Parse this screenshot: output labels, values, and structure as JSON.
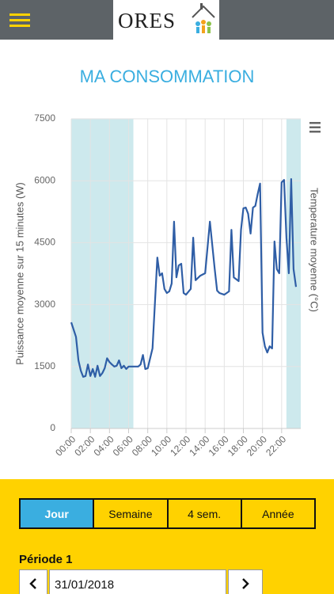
{
  "header": {
    "logo": "ORES"
  },
  "page_title": "MA CONSOMMATION",
  "chart_data": {
    "type": "line",
    "ylabel": "Puissance moyenne sur 15 minutes (W)",
    "y2label": "Temperature moyenne (°C)",
    "xlim": [
      0,
      24
    ],
    "xticks": [
      {
        "value": 0,
        "label": "00:00"
      },
      {
        "value": 2,
        "label": "02:00"
      },
      {
        "value": 4,
        "label": "04:00"
      },
      {
        "value": 6,
        "label": "06:00"
      },
      {
        "value": 8,
        "label": "08:00"
      },
      {
        "value": 10,
        "label": "10:00"
      },
      {
        "value": 12,
        "label": "12:00"
      },
      {
        "value": 14,
        "label": "14:00"
      },
      {
        "value": 16,
        "label": "16:00"
      },
      {
        "value": 18,
        "label": "18:00"
      },
      {
        "value": 20,
        "label": "20:00"
      },
      {
        "value": 22,
        "label": "22:00"
      }
    ],
    "ylim": [
      0,
      7500
    ],
    "yticks": [
      0,
      1500,
      3000,
      4500,
      6000,
      7500
    ],
    "grid": true,
    "bands": [
      {
        "from": 0,
        "to": 6.5,
        "color": "#cde9ed"
      },
      {
        "from": 22.5,
        "to": 24,
        "color": "#cde9ed"
      }
    ],
    "x": [
      0,
      0.5,
      0.75,
      1,
      1.25,
      1.5,
      1.75,
      2,
      2.25,
      2.5,
      2.75,
      3,
      3.25,
      3.5,
      3.75,
      4,
      4.25,
      4.5,
      4.75,
      5,
      5.25,
      5.5,
      5.75,
      6,
      6.5,
      7,
      7.25,
      7.5,
      7.75,
      8,
      8.5,
      9,
      9.25,
      9.5,
      9.75,
      10,
      10.25,
      10.5,
      10.75,
      11,
      11.25,
      11.5,
      11.75,
      12,
      12.5,
      12.75,
      13,
      13.5,
      14,
      14.5,
      15,
      15.25,
      15.5,
      16,
      16.5,
      16.75,
      17,
      17.5,
      17.75,
      18,
      18.25,
      18.5,
      18.75,
      19,
      19.25,
      19.5,
      19.75,
      20,
      20.25,
      20.5,
      20.75,
      21,
      21.25,
      21.5,
      21.75,
      22,
      22.25,
      22.5,
      22.75,
      23,
      23.25,
      23.5
    ],
    "series": [
      {
        "color": "#2f5ea6",
        "values": [
          2570,
          2220,
          1650,
          1400,
          1250,
          1270,
          1550,
          1270,
          1440,
          1250,
          1520,
          1270,
          1340,
          1460,
          1700,
          1610,
          1550,
          1500,
          1520,
          1650,
          1460,
          1520,
          1440,
          1500,
          1500,
          1500,
          1550,
          1780,
          1440,
          1460,
          1940,
          4140,
          3700,
          3760,
          3380,
          3280,
          3320,
          3510,
          5010,
          3660,
          3950,
          3990,
          3280,
          3240,
          3380,
          4620,
          3590,
          3700,
          3760,
          5010,
          3860,
          3340,
          3280,
          3240,
          3320,
          4810,
          3660,
          3570,
          4810,
          5330,
          5350,
          5200,
          4720,
          5350,
          5390,
          5680,
          5930,
          2320,
          1990,
          1840,
          1990,
          1940,
          4530,
          3860,
          3760,
          5960,
          6020,
          4620,
          3760,
          6040,
          3860,
          3430
        ]
      }
    ]
  },
  "tabs": [
    {
      "label": "Jour",
      "active": true
    },
    {
      "label": "Semaine",
      "active": false
    },
    {
      "label": "4 sem.",
      "active": false
    },
    {
      "label": "Année",
      "active": false
    }
  ],
  "period": {
    "label": "Période 1",
    "date": "31/01/2018"
  }
}
